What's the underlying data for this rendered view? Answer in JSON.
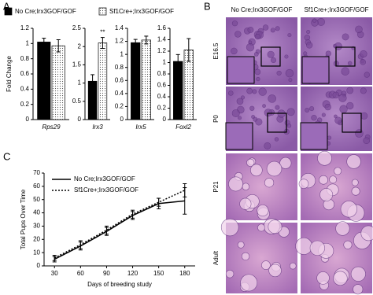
{
  "panel_labels": [
    "A",
    "B",
    "C"
  ],
  "histology": {
    "columns": [
      "No Cre;Irx3GOF/GOF",
      "Sf1Cre+;Irx3GOF/GOF"
    ],
    "rows": [
      "E16.5",
      "P0",
      "P21",
      "Adult"
    ]
  },
  "chart_data": [
    {
      "type": "bar",
      "ylabel": "Fold Change",
      "legend": "top",
      "categories": [
        "Rps29"
      ],
      "series": [
        {
          "name": "No Cre;Irx3GOF/GOF",
          "color": "#000000",
          "values": [
            1.02
          ],
          "error": [
            0.05
          ]
        },
        {
          "name": "Sf1Cre+;Irx3GOF/GOF",
          "color": "#ffffff",
          "hatch": "dots",
          "values": [
            0.97
          ],
          "error": [
            0.08
          ]
        }
      ],
      "ylim": [
        0,
        1.2
      ],
      "yticks": [
        0,
        0.2,
        0.4,
        0.6,
        0.8,
        1,
        1.2
      ]
    },
    {
      "type": "bar",
      "categories": [
        "Irx3"
      ],
      "annotation": "**",
      "series": [
        {
          "name": "No Cre;Irx3GOF/GOF",
          "color": "#000000",
          "values": [
            1.05
          ],
          "error": [
            0.18
          ]
        },
        {
          "name": "Sf1Cre+;Irx3GOF/GOF",
          "color": "#ffffff",
          "hatch": "dots",
          "values": [
            2.1
          ],
          "error": [
            0.15
          ]
        }
      ],
      "ylim": [
        0,
        2.5
      ],
      "yticks": [
        0,
        0.5,
        1,
        1.5,
        2,
        2.5
      ]
    },
    {
      "type": "bar",
      "categories": [
        "Irx5"
      ],
      "series": [
        {
          "name": "No Cre;Irx3GOF/GOF",
          "color": "#000000",
          "values": [
            1.18
          ],
          "error": [
            0.05
          ]
        },
        {
          "name": "Sf1Cre+;Irx3GOF/GOF",
          "color": "#ffffff",
          "hatch": "dots",
          "values": [
            1.22
          ],
          "error": [
            0.06
          ]
        }
      ],
      "ylim": [
        0,
        1.4
      ],
      "yticks": [
        0,
        0.2,
        0.4,
        0.6,
        0.8,
        1,
        1.2,
        1.4
      ]
    },
    {
      "type": "bar",
      "categories": [
        "Foxl2"
      ],
      "series": [
        {
          "name": "No Cre;Irx3GOF/GOF",
          "color": "#000000",
          "values": [
            1.02
          ],
          "error": [
            0.12
          ]
        },
        {
          "name": "Sf1Cre+;Irx3GOF/GOF",
          "color": "#ffffff",
          "hatch": "dots",
          "values": [
            1.22
          ],
          "error": [
            0.2
          ]
        }
      ],
      "ylim": [
        0,
        1.6
      ],
      "yticks": [
        0,
        0.2,
        0.4,
        0.6,
        0.8,
        1,
        1.2,
        1.4,
        1.6
      ]
    },
    {
      "type": "line",
      "xlabel": "Days of breeding study",
      "ylabel": "Total Pups Over Time",
      "legend": "upper left",
      "x": [
        30,
        60,
        90,
        120,
        150,
        180
      ],
      "series": [
        {
          "name": "No Cre;Irx3GOF/GOF",
          "color": "#000000",
          "line_style": "solid",
          "values": [
            5,
            15,
            26,
            38,
            47,
            49
          ],
          "error": [
            2,
            3,
            3,
            3,
            4,
            10
          ]
        },
        {
          "name": "Sf1Cre+;Irx3GOF/GOF",
          "color": "#000000",
          "line_style": "dotted",
          "values": [
            6,
            16,
            27,
            39,
            48,
            57
          ],
          "error": [
            2,
            3,
            3,
            3,
            3,
            5
          ]
        }
      ],
      "xlim": [
        18,
        192
      ],
      "xticks": [
        30,
        60,
        90,
        120,
        150,
        180
      ],
      "ylim": [
        0,
        70
      ],
      "yticks": [
        0,
        10,
        20,
        30,
        40,
        50,
        60,
        70
      ]
    }
  ]
}
